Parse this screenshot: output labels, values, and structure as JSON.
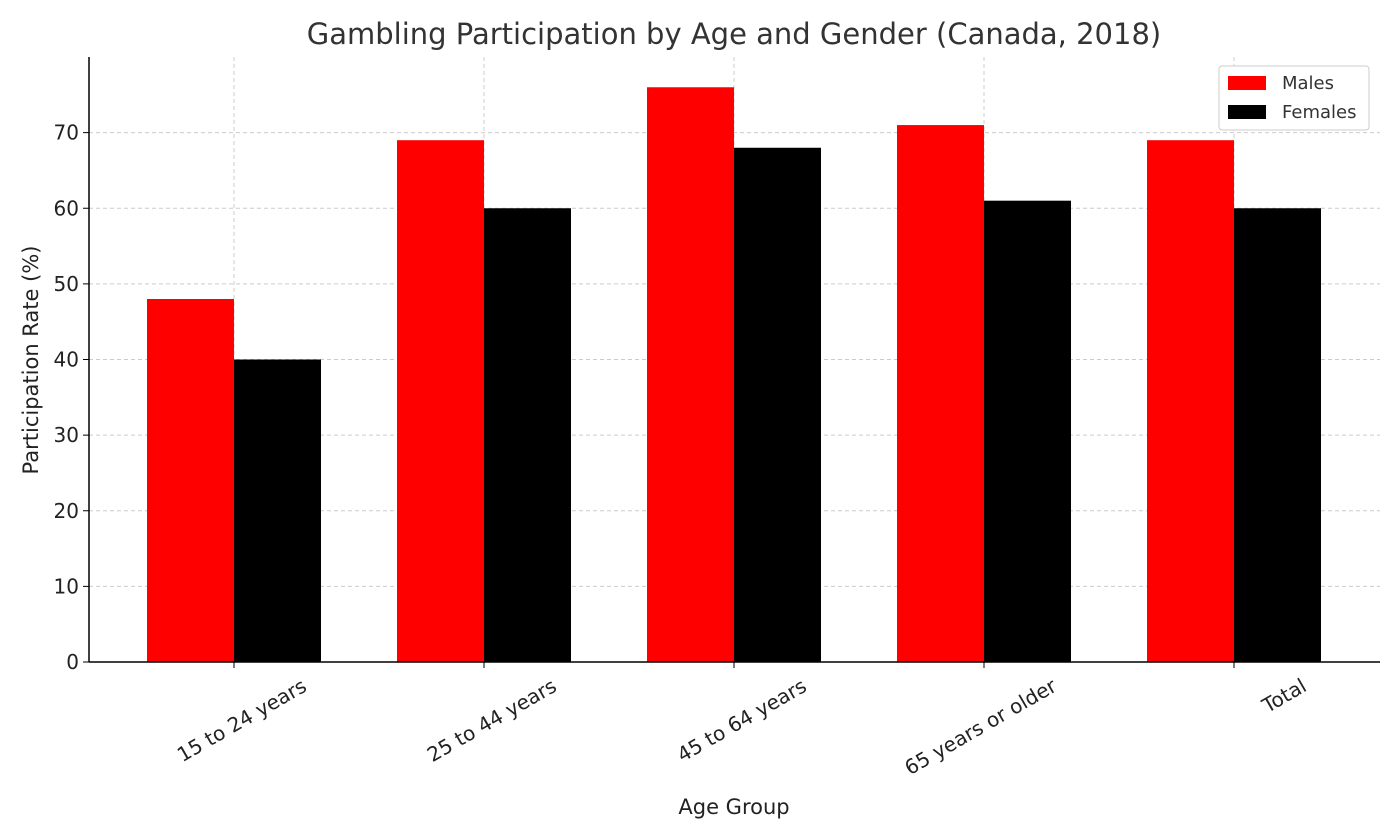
{
  "chart_data": {
    "type": "bar",
    "title": "Gambling Participation by Age and Gender (Canada, 2018)",
    "xlabel": "Age Group",
    "ylabel": "Participation Rate (%)",
    "categories": [
      "15 to 24 years",
      "25 to 44 years",
      "45 to 64 years",
      "65 years or older",
      "Total"
    ],
    "series": [
      {
        "name": "Males",
        "color": "#ff0000",
        "values": [
          48,
          69,
          76,
          71,
          69
        ]
      },
      {
        "name": "Females",
        "color": "#000000",
        "values": [
          40,
          60,
          68,
          61,
          60
        ]
      }
    ],
    "ylim": [
      0,
      80
    ],
    "yticks": [
      0,
      10,
      20,
      30,
      40,
      50,
      60,
      70
    ],
    "grid": true,
    "legend_position": "top-right"
  }
}
